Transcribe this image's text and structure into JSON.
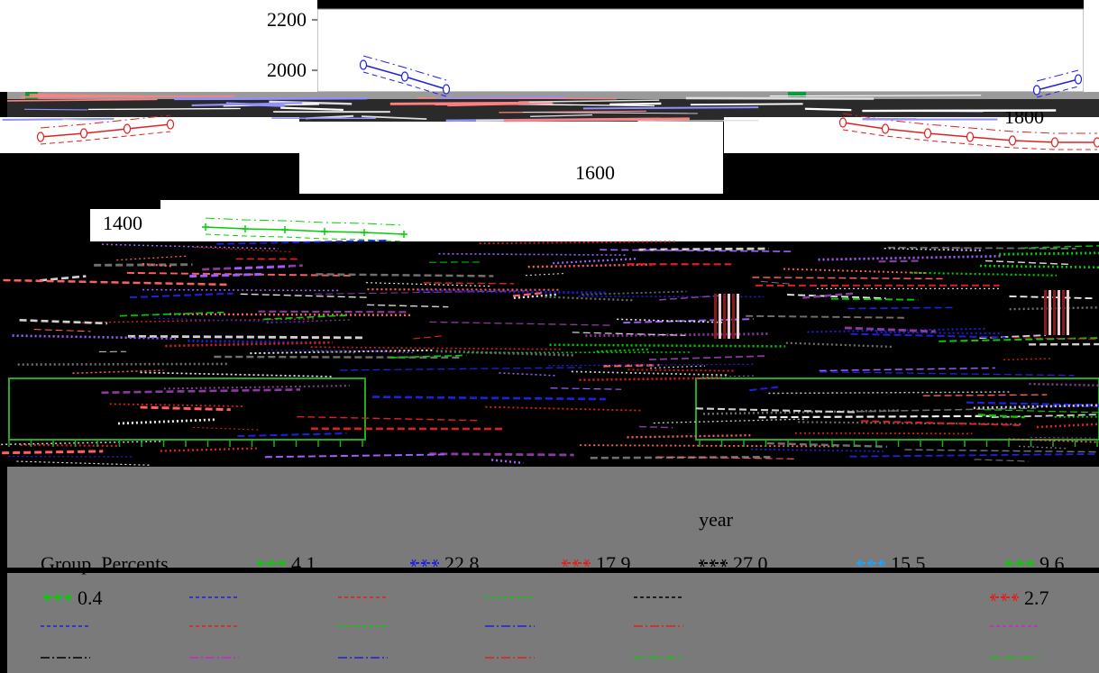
{
  "chart_data": {
    "type": "line",
    "title": "",
    "xlabel": "year",
    "ylabel": "",
    "y_ticks": [
      "2200",
      "2000",
      "1800",
      "1600",
      "1400"
    ],
    "ylim": [
      1300,
      2200
    ],
    "grid": false,
    "legend_title": "Group_Percents",
    "legend_position": "bottom",
    "legend": [
      {
        "label": "4.1",
        "color": "#00d000"
      },
      {
        "label": "22.8",
        "color": "#2020e0"
      },
      {
        "label": "17.9",
        "color": "#e02020"
      },
      {
        "label": "27.0",
        "color": "#000000"
      },
      {
        "label": "15.5",
        "color": "#20a0ff"
      },
      {
        "label": "9.6",
        "color": "#00d000"
      },
      {
        "label": "0.4",
        "color": "#00d000"
      },
      {
        "label": "2.7",
        "color": "#e02020"
      }
    ],
    "series": [
      {
        "color": "#2020e0",
        "x": [
          1,
          2,
          3
        ],
        "values": [
          2030,
          1975,
          1945
        ],
        "marker": "open"
      },
      {
        "color": "#2020e0",
        "x": [
          24,
          25
        ],
        "values": [
          1900,
          1960
        ],
        "marker": "open"
      },
      {
        "color": "#e02020",
        "x": [
          1,
          2,
          3,
          4
        ],
        "values": [
          1780,
          1790,
          1800,
          1810
        ],
        "marker": "open"
      },
      {
        "color": "#e02020",
        "x": [
          19,
          20,
          21,
          22,
          23,
          24,
          25
        ],
        "values": [
          1810,
          1790,
          1780,
          1770,
          1765,
          1760,
          1760
        ],
        "marker": "open"
      },
      {
        "color": "#00d000",
        "x": [
          1,
          2,
          3,
          4,
          5,
          6
        ],
        "values": [
          1420,
          1415,
          1415,
          1410,
          1405,
          1400
        ],
        "marker": "plus"
      }
    ]
  },
  "legend_colors": {
    "green": "#00d000",
    "blue": "#2020e0",
    "red": "#e02020",
    "black": "#000000",
    "magenta": "#d020d0"
  }
}
